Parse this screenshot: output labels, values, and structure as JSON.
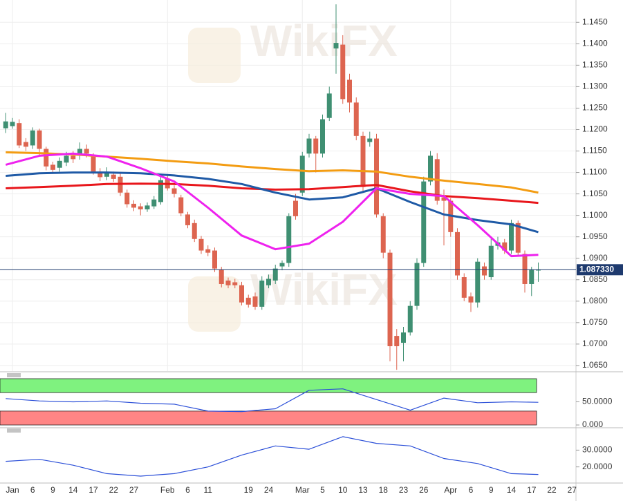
{
  "watermark": "WikiFX",
  "chart_data": [
    {
      "type": "candlestick",
      "categories": [
        null,
        "Jan",
        null,
        null,
        "6",
        null,
        null,
        "9",
        null,
        null,
        "14",
        null,
        null,
        "17",
        null,
        null,
        "22",
        null,
        null,
        "27",
        null,
        null,
        null,
        null,
        "Feb",
        null,
        null,
        "6",
        null,
        null,
        "11",
        null,
        null,
        null,
        null,
        null,
        "19",
        null,
        null,
        "24",
        null,
        null,
        null,
        null,
        "Mar",
        null,
        null,
        "5",
        null,
        null,
        "10",
        null,
        null,
        "13",
        null,
        null,
        "18",
        null,
        null,
        "23",
        null,
        null,
        "26",
        null,
        null,
        null,
        "Apr",
        null,
        null,
        "6",
        null,
        null,
        "9",
        null,
        null,
        "14",
        null,
        null,
        "17",
        null,
        null,
        "22",
        null,
        null,
        "27"
      ],
      "open": [
        1.1203,
        1.1208,
        1.1215,
        1.1171,
        1.1163,
        1.1198,
        1.1155,
        1.1118,
        1.1111,
        1.1123,
        1.1139,
        1.1139,
        1.1155,
        1.1139,
        1.1102,
        1.109,
        1.1095,
        1.109,
        1.1053,
        1.1027,
        1.1021,
        1.1014,
        1.1021,
        1.1031,
        1.1085,
        1.1063,
        1.1042,
        1.1002,
        1.0982,
        1.0945,
        1.0921,
        1.0918,
        1.0873,
        1.0848,
        1.0844,
        1.0837,
        1.0808,
        1.0811,
        1.0787,
        1.0837,
        1.0848,
        1.0881,
        1.0889,
        1.1034,
        1.1053,
        1.1144,
        1.1179,
        1.1144,
        1.1227,
        1.1389,
        1.1398,
        1.1316,
        1.1263,
        1.1185,
        1.1171,
        1.1179,
        1.0998,
        1.0913,
        1.0719,
        1.0703,
        1.0727,
        1.0789,
        1.0889,
        1.1079,
        1.1131,
        1.1042,
        1.1034,
        1.0961,
        1.0856,
        1.0811,
        1.0797,
        1.0881,
        1.0856,
        1.0929,
        1.0937,
        1.0918,
        1.0982,
        1.091,
        1.084,
        1.0873,
        null,
        null,
        null,
        null,
        null
      ],
      "high": [
        1.1239,
        1.1227,
        1.1224,
        1.118,
        1.1205,
        1.1202,
        1.116,
        1.1125,
        1.1135,
        1.1148,
        1.115,
        1.117,
        1.1165,
        1.1145,
        1.111,
        1.1112,
        1.1102,
        1.1098,
        1.106,
        1.1035,
        1.1028,
        1.103,
        1.1045,
        1.109,
        1.1092,
        1.107,
        1.1048,
        1.1008,
        1.099,
        1.0952,
        1.093,
        1.0925,
        1.088,
        1.0855,
        1.0852,
        1.0845,
        1.0815,
        1.082,
        1.0858,
        1.0862,
        1.0885,
        1.0895,
        1.1005,
        1.105,
        1.1148,
        1.119,
        1.1185,
        1.1235,
        1.13,
        1.1492,
        1.142,
        1.133,
        1.1275,
        1.1195,
        1.1195,
        1.119,
        1.1005,
        1.092,
        1.0735,
        1.074,
        1.08,
        1.09,
        1.109,
        1.115,
        1.1145,
        1.106,
        1.104,
        1.097,
        1.0865,
        1.082,
        1.09,
        1.089,
        1.0945,
        1.095,
        1.0945,
        1.099,
        1.0988,
        1.0918,
        1.088,
        1.089,
        null,
        null,
        null,
        null,
        null
      ],
      "low": [
        1.1192,
        1.1202,
        1.1157,
        1.115,
        1.1155,
        1.114,
        1.1105,
        1.1098,
        1.1102,
        1.1115,
        1.1122,
        1.113,
        1.1135,
        1.1095,
        1.108,
        1.1082,
        1.1078,
        1.1045,
        1.1018,
        1.101,
        1.1,
        1.1008,
        1.1015,
        1.1025,
        1.1058,
        1.1042,
        1.0998,
        1.097,
        1.0938,
        1.091,
        1.0905,
        1.0868,
        1.0832,
        1.083,
        1.083,
        1.079,
        1.0785,
        1.078,
        1.078,
        1.083,
        1.084,
        1.0872,
        1.088,
        1.099,
        1.1045,
        1.1135,
        1.11,
        1.1135,
        1.122,
        1.133,
        1.126,
        1.124,
        1.1175,
        1.1055,
        1.116,
        1.0995,
        1.09,
        1.066,
        1.064,
        1.066,
        1.072,
        1.078,
        1.088,
        1.107,
        1.1025,
        1.093,
        1.095,
        1.085,
        1.08,
        1.0775,
        1.0785,
        1.085,
        1.085,
        1.092,
        1.091,
        1.091,
        1.0905,
        1.082,
        1.0812,
        1.0845,
        null,
        null,
        null,
        null,
        null
      ],
      "close": [
        1.1219,
        1.1218,
        1.1163,
        1.116,
        1.1198,
        1.1155,
        1.1114,
        1.1106,
        1.1127,
        1.1139,
        1.1131,
        1.1155,
        1.1144,
        1.1102,
        1.1089,
        1.1098,
        1.1085,
        1.1053,
        1.1026,
        1.1018,
        1.1014,
        1.1023,
        1.1037,
        1.1082,
        1.1063,
        1.105,
        1.1005,
        1.0977,
        1.0945,
        1.0918,
        1.0913,
        1.0876,
        1.084,
        1.0837,
        1.0837,
        1.0797,
        1.0792,
        1.0787,
        1.0848,
        1.0852,
        1.0876,
        1.0889,
        1.0998,
        1.0998,
        1.1139,
        1.1179,
        1.1144,
        1.1224,
        1.1284,
        1.1402,
        1.1271,
        1.1263,
        1.1185,
        1.1066,
        1.1179,
        1.1002,
        1.0913,
        1.0695,
        1.0695,
        1.0727,
        1.0789,
        1.0889,
        1.1079,
        1.1139,
        1.1034,
        1.1034,
        1.0961,
        1.086,
        1.0808,
        1.0797,
        1.0892,
        1.086,
        1.0929,
        1.0937,
        1.0918,
        1.0982,
        1.0913,
        1.084,
        1.0873,
        1.0873,
        null,
        null,
        null,
        null,
        null
      ],
      "up_color": "#3f8f72",
      "down_color": "#dd6550",
      "ylim": [
        1.0637,
        1.1502
      ],
      "yticks": [
        {
          "value": 1.065,
          "label": "1.0650"
        },
        {
          "value": 1.07,
          "label": "1.0700"
        },
        {
          "value": 1.075,
          "label": "1.0750"
        },
        {
          "value": 1.08,
          "label": "1.0800"
        },
        {
          "value": 1.085,
          "label": "1.0850"
        },
        {
          "value": 1.09,
          "label": "1.0900"
        },
        {
          "value": 1.095,
          "label": "1.0950"
        },
        {
          "value": 1.1,
          "label": "1.1000"
        },
        {
          "value": 1.105,
          "label": "1.1050"
        },
        {
          "value": 1.11,
          "label": "1.1100"
        },
        {
          "value": 1.115,
          "label": "1.1150"
        },
        {
          "value": 1.12,
          "label": "1.1200"
        },
        {
          "value": 1.125,
          "label": "1.1250"
        },
        {
          "value": 1.13,
          "label": "1.1300"
        },
        {
          "value": 1.135,
          "label": "1.1350"
        },
        {
          "value": 1.14,
          "label": "1.1400"
        },
        {
          "value": 1.145,
          "label": "1.1450"
        }
      ],
      "last_price": {
        "value": 1.08733,
        "label": "1.087330"
      },
      "grid": true,
      "series": [
        {
          "color": "#f39c12",
          "x": [
            0,
            5,
            10,
            15,
            20,
            25,
            30,
            35,
            40,
            45,
            50,
            55,
            60,
            65,
            70,
            75,
            79
          ],
          "values": [
            1.1147,
            1.1145,
            1.1142,
            1.1137,
            1.1132,
            1.1126,
            1.1121,
            1.1114,
            1.1108,
            1.1103,
            1.1105,
            1.1102,
            1.109,
            1.1081,
            1.1073,
            1.1065,
            1.1053
          ]
        },
        {
          "color": "#e8161b",
          "x": [
            0,
            5,
            10,
            15,
            20,
            25,
            30,
            35,
            40,
            45,
            50,
            55,
            60,
            65,
            70,
            75,
            79
          ],
          "values": [
            1.1063,
            1.1066,
            1.1069,
            1.1073,
            1.1074,
            1.1073,
            1.1069,
            1.1063,
            1.106,
            1.1061,
            1.1066,
            1.1071,
            1.1056,
            1.1045,
            1.104,
            1.1034,
            1.1029
          ]
        },
        {
          "color": "#1f5aa6",
          "x": [
            0,
            5,
            10,
            15,
            20,
            25,
            30,
            35,
            40,
            45,
            50,
            55,
            60,
            65,
            70,
            75,
            79
          ],
          "values": [
            1.1092,
            1.1098,
            1.11,
            1.11,
            1.1098,
            1.1093,
            1.1085,
            1.1073,
            1.1053,
            1.1037,
            1.1042,
            1.1063,
            1.1031,
            1.1002,
            1.0989,
            1.0979,
            1.0961
          ]
        },
        {
          "color": "#ee22ee",
          "x": [
            0,
            5,
            10,
            15,
            20,
            25,
            30,
            35,
            40,
            45,
            50,
            55,
            60,
            65,
            70,
            75,
            79
          ],
          "values": [
            1.1118,
            1.1139,
            1.1144,
            1.1137,
            1.111,
            1.1079,
            1.1018,
            1.0953,
            1.0921,
            1.0934,
            1.0985,
            1.1063,
            1.105,
            1.1045,
            1.0977,
            1.0905,
            1.0908
          ]
        }
      ]
    },
    {
      "type": "line",
      "ylim": [
        -3,
        104.5
      ],
      "yticks": [
        {
          "value": 50,
          "label": "50.0000"
        },
        {
          "value": 0,
          "label": "0.000"
        }
      ],
      "bands": [
        {
          "range": [
            70,
            100
          ],
          "color": "#7ff27f"
        },
        {
          "range": [
            0,
            30
          ],
          "color": "#ff8585"
        }
      ],
      "series": [
        {
          "color": "#2b4fd8",
          "x": [
            0,
            5,
            10,
            15,
            20,
            25,
            30,
            35,
            40,
            45,
            50,
            55,
            60,
            65,
            70,
            75,
            79
          ],
          "values": [
            57,
            52,
            50,
            52,
            47,
            45,
            30,
            29,
            35,
            75,
            78,
            55,
            32,
            58,
            48,
            50,
            49
          ]
        }
      ]
    },
    {
      "type": "line",
      "ylim": [
        10.8,
        42.5
      ],
      "yticks": [
        {
          "value": 30,
          "label": "30.0000"
        },
        {
          "value": 20,
          "label": "20.0000"
        }
      ],
      "series": [
        {
          "color": "#2b4fd8",
          "x": [
            0,
            5,
            10,
            15,
            20,
            25,
            30,
            35,
            40,
            45,
            50,
            55,
            60,
            65,
            70,
            75,
            79
          ],
          "values": [
            23.3,
            24.5,
            21,
            16,
            14.5,
            16,
            20,
            27,
            32.5,
            30.5,
            38,
            34,
            32.5,
            25,
            22,
            16,
            15.5
          ]
        }
      ]
    }
  ]
}
